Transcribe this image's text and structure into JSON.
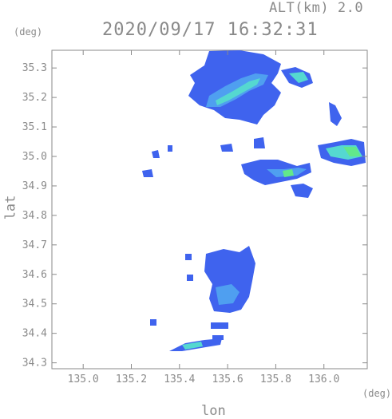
{
  "header": {
    "alt_label": "ALT(km) 2.0",
    "timestamp": "2020/09/17 16:32:31"
  },
  "axes": {
    "lat_unit": "(deg)",
    "lon_unit": "(deg)",
    "lat_label": "lat",
    "lon_label": "lon",
    "lat_range": [
      34.28,
      35.36
    ],
    "lon_range": [
      134.87,
      136.18
    ],
    "lat_ticks": [
      "34.3",
      "34.4",
      "34.5",
      "34.6",
      "34.7",
      "34.8",
      "34.9",
      "35.0",
      "35.1",
      "35.2",
      "35.3"
    ],
    "lon_ticks": [
      "135.0",
      "135.2",
      "135.4",
      "135.6",
      "135.8",
      "136.0"
    ]
  },
  "colors": {
    "frame": "#8a8a8a",
    "echo_low": "#3f63ee",
    "echo_mid": "#4f9ff0",
    "echo_high": "#55d8d0",
    "echo_peak": "#62e88a"
  }
}
